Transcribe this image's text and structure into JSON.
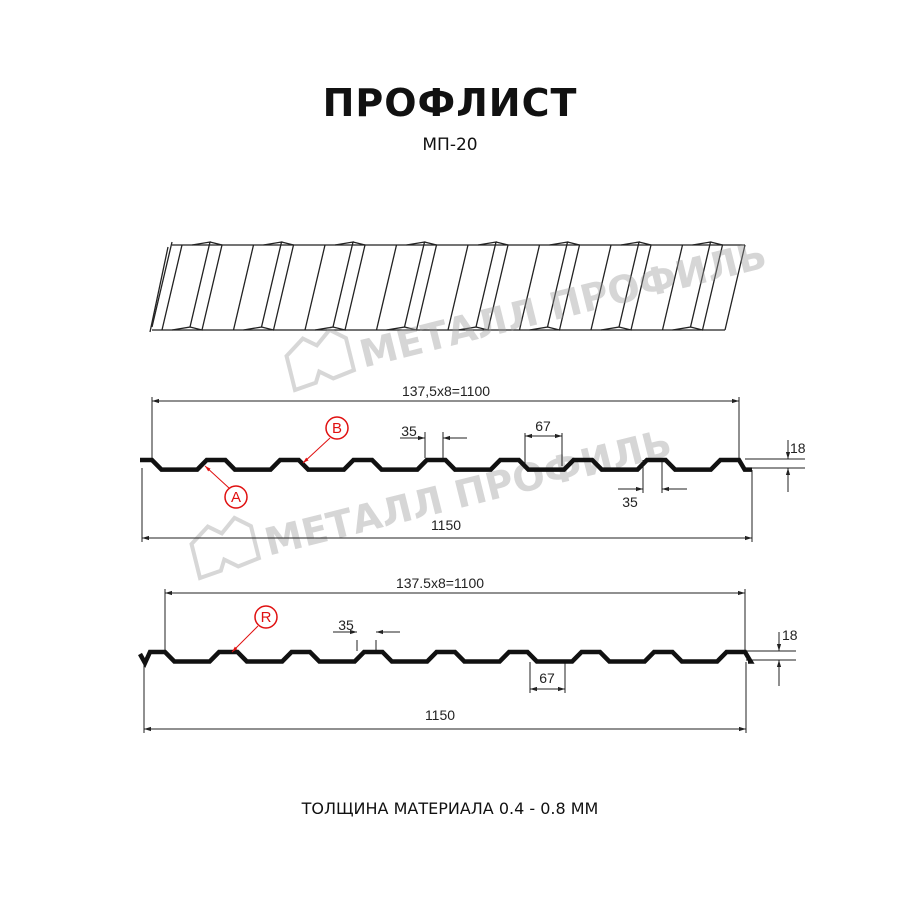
{
  "title": "ПРОФЛИСТ",
  "subtitle": "МП-20",
  "watermark": "МЕТАЛЛ ПРОФИЛЬ",
  "footer": "ТОЛЩИНА МАТЕРИАЛА 0.4 - 0.8 ММ",
  "colors": {
    "profile": "#111111",
    "callout": "#e01010",
    "dimension": "#333333",
    "watermark": "#9a9a9a"
  },
  "profile_a": {
    "pitch_label": "137,5x8=1100",
    "total_label": "1150",
    "crest_label": "35",
    "trough_label": "67",
    "crest_label_2": "35",
    "height_label": "18",
    "callout_b": "B",
    "callout_a": "A",
    "ribs": 8,
    "crest_mm": 35,
    "trough_mm": 67,
    "pitch_mm": 137.5,
    "height_mm": 18
  },
  "profile_r": {
    "pitch_label": "137.5x8=1100",
    "total_label": "1150",
    "crest_label": "35",
    "trough_label": "67",
    "height_label": "18",
    "callout_r": "R",
    "ribs": 8,
    "crest_mm": 35,
    "trough_mm": 67,
    "pitch_mm": 137.5,
    "height_mm": 18
  }
}
